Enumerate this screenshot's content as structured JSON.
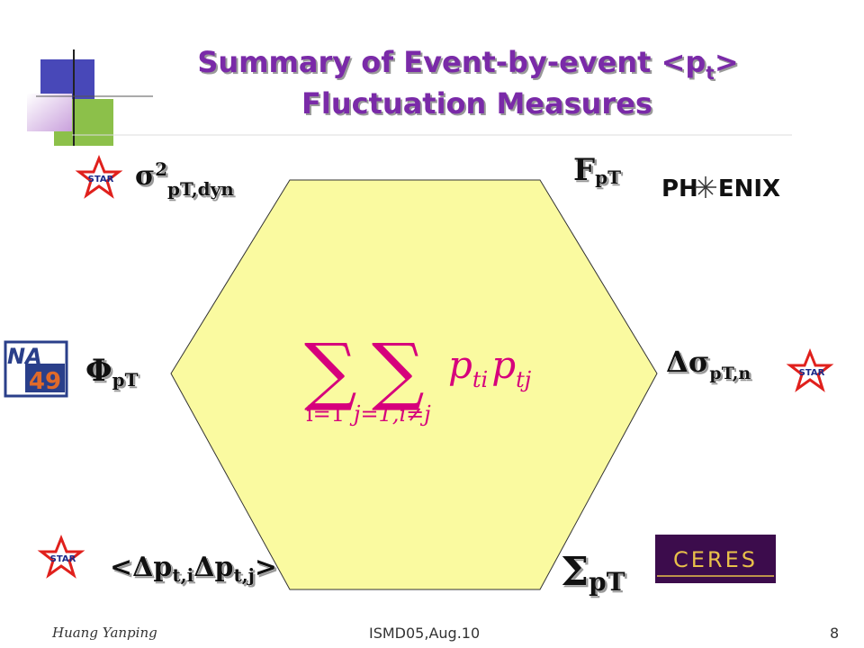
{
  "title": {
    "line1": "Summary of Event-by-event <p",
    "line1_sub": "t",
    "line1_end": ">",
    "line2": "Fluctuation Measures"
  },
  "measures": [
    {
      "symbol": "σ",
      "sup": "2",
      "sub": "pT,dyn"
    },
    {
      "symbol": "F",
      "sub": "pT"
    },
    {
      "symbol": "Φ",
      "sub": "pT"
    },
    {
      "symbol": "Δσ",
      "sub": "pT,n"
    },
    {
      "symbol": "<Δp",
      "sub": "t,i",
      "mid": "Δp",
      "sub2": "t,j",
      "end": ">"
    },
    {
      "symbol": "Σ",
      "sub": "pT"
    }
  ],
  "logos": {
    "star": "STAR",
    "phenix_left": "PH",
    "phenix_right": "ENIX",
    "na": "NA",
    "na_num": "49",
    "ceres": "CERES"
  },
  "formula": {
    "sum": "∑",
    "sum1_lower": "i=1",
    "sum2_lower": "j=1,i≠j",
    "term": "p",
    "sub1": "ti",
    "sub2": "tj"
  },
  "footer": {
    "author": "Huang Yanping",
    "event": "ISMD05,Aug.10",
    "page": "8"
  }
}
